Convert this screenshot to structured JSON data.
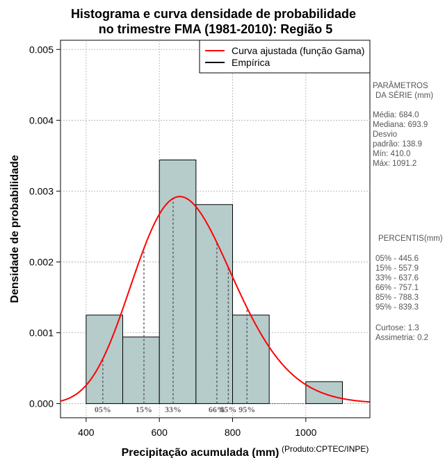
{
  "chart_data": {
    "type": "bar",
    "title": [
      "Histograma e curva densidade de probabilidade",
      "no trimestre FMA (1981-2010): Região 5"
    ],
    "xlabel": "Precipitação acumulada (mm)",
    "ylabel": "Densidade de probabilidade",
    "credit": "(Produto:CPTEC/INPE)",
    "xlim": [
      330,
      1175
    ],
    "ylim": [
      -0.0002,
      0.00513
    ],
    "x_ticks": [
      400,
      600,
      800,
      1000
    ],
    "y_ticks": [
      0.0,
      0.001,
      0.002,
      0.003,
      0.004,
      0.005
    ],
    "y_tick_labels": [
      "0.000",
      "0.001",
      "0.002",
      "0.003",
      "0.004",
      "0.005"
    ],
    "grid": true,
    "bins": [
      {
        "start": 400,
        "end": 500,
        "density": 0.00125
      },
      {
        "start": 500,
        "end": 600,
        "density": 0.00094
      },
      {
        "start": 600,
        "end": 700,
        "density": 0.00344
      },
      {
        "start": 700,
        "end": 800,
        "density": 0.00281
      },
      {
        "start": 800,
        "end": 900,
        "density": 0.00125
      },
      {
        "start": 900,
        "end": 1000,
        "density": 0
      },
      {
        "start": 1000,
        "end": 1100,
        "density": 0.00031
      }
    ],
    "bar_color": "#b5cccb",
    "curve": {
      "name": "Curva ajustada (função Gama)",
      "distribution": "gamma",
      "mean": 684.0,
      "sd": 138.9,
      "color": "#ff0000"
    },
    "empirical": {
      "name": "Empírica",
      "color": "#000000"
    },
    "legend_position": "top-right",
    "percentiles": [
      {
        "label": "05%",
        "value": 445.6
      },
      {
        "label": "15%",
        "value": 557.9
      },
      {
        "label": "33%",
        "value": 637.6
      },
      {
        "label": "66%",
        "value": 757.1
      },
      {
        "label": "85%",
        "value": 788.3
      },
      {
        "label": "95%",
        "value": 839.3
      }
    ]
  },
  "side_panel": {
    "params_title": [
      "PARÂMETROS",
      "DA SÉRIE (mm)"
    ],
    "params": [
      "Média:  684.0",
      "Mediana:  693.9",
      "Desvio",
      "padrão:  138.9",
      "Mín:  410.0",
      "Máx:  1091.2"
    ],
    "percentis_title": "PERCENTIS(mm)",
    "percentis": [
      "05% -  445.6",
      "15% -  557.9",
      "33% -  637.6",
      "66% -  757.1",
      "85% -  788.3",
      "95% -  839.3"
    ],
    "stats": [
      "Curtose:  1.3",
      "Assimetria:  0.2"
    ]
  }
}
